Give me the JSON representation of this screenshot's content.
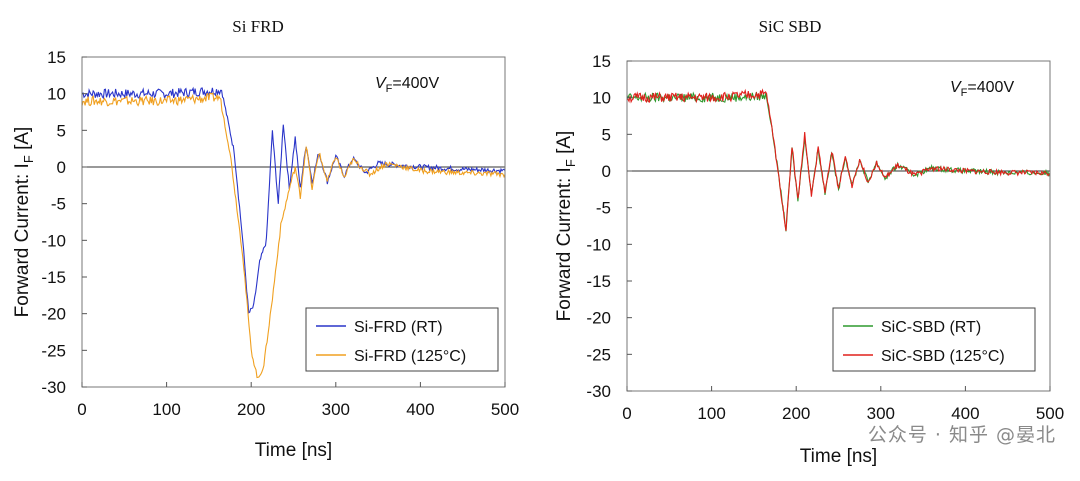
{
  "watermark": "公众号 · 知乎 @晏北",
  "chart_data": [
    {
      "type": "line",
      "title": "Si FRD",
      "xlabel": "Time [ns]",
      "ylabel": "Forward Current: I",
      "ylabel_sub": "F",
      "ylabel_unit": " [A]",
      "annotation": {
        "main": "V",
        "sub": "F",
        "rest": "=400V"
      },
      "xlim": [
        0,
        500
      ],
      "ylim": [
        -30,
        15
      ],
      "xticks": [
        0,
        100,
        200,
        300,
        400,
        500
      ],
      "yticks": [
        15,
        10,
        5,
        0,
        -5,
        -10,
        -15,
        -20,
        -25,
        -30
      ],
      "series": [
        {
          "name": "Si-FRD (RT)",
          "color": "#2a35c9",
          "x": [
            0,
            100,
            165,
            180,
            190,
            197,
            203,
            210,
            218,
            225,
            232,
            238,
            245,
            252,
            258,
            265,
            272,
            280,
            290,
            300,
            310,
            320,
            335,
            350,
            400,
            450,
            500
          ],
          "y": [
            10,
            10,
            10.5,
            2,
            -10,
            -20,
            -19,
            -13,
            -10,
            5,
            -5,
            6,
            -3,
            4,
            -3,
            3,
            -2,
            2,
            -2,
            1.5,
            -1.2,
            1.2,
            -0.8,
            0.5,
            0,
            -0.3,
            -0.5
          ]
        },
        {
          "name": "Si-FRD (125°C)",
          "color": "#f0a020",
          "x": [
            0,
            100,
            163,
            175,
            190,
            200,
            208,
            215,
            225,
            235,
            245,
            252,
            258,
            265,
            272,
            280,
            290,
            300,
            310,
            320,
            340,
            360,
            400,
            450,
            500
          ],
          "y": [
            9,
            9,
            9.5,
            2,
            -12,
            -25,
            -29,
            -27,
            -18,
            -8,
            -3,
            0,
            -4,
            3,
            -3,
            2,
            -2,
            1.5,
            -1.5,
            1,
            -1,
            0.5,
            -0.5,
            -0.8,
            -1
          ]
        }
      ]
    },
    {
      "type": "line",
      "title": "SiC SBD",
      "xlabel": "Time [ns]",
      "ylabel": "Forward Current: I",
      "ylabel_sub": "F",
      "ylabel_unit": " [A]",
      "annotation": {
        "main": "V",
        "sub": "F",
        "rest": "=400V"
      },
      "xlim": [
        0,
        500
      ],
      "ylim": [
        -30,
        15
      ],
      "xticks": [
        0,
        100,
        200,
        300,
        400,
        500
      ],
      "yticks": [
        15,
        10,
        5,
        0,
        -5,
        -10,
        -15,
        -20,
        -25,
        -30
      ],
      "series": [
        {
          "name": "SiC-SBD (RT)",
          "color": "#2e9a2e",
          "x": [
            0,
            100,
            165,
            175,
            182,
            188,
            195,
            202,
            210,
            218,
            226,
            234,
            242,
            250,
            258,
            266,
            275,
            285,
            295,
            305,
            320,
            340,
            360,
            400,
            450,
            500
          ],
          "y": [
            10,
            10,
            10.2,
            3,
            -3,
            -8,
            3,
            -4,
            4.5,
            -3,
            3,
            -3,
            2.5,
            -2.5,
            2,
            -2,
            1.5,
            -1.5,
            1.2,
            -1,
            0.8,
            -0.5,
            0.4,
            0,
            -0.2,
            -0.3
          ]
        },
        {
          "name": "SiC-SBD (125°C)",
          "color": "#e0201c",
          "x": [
            0,
            100,
            165,
            175,
            182,
            188,
            195,
            202,
            210,
            218,
            226,
            234,
            242,
            250,
            258,
            266,
            275,
            285,
            295,
            305,
            320,
            340,
            360,
            400,
            450,
            500
          ],
          "y": [
            10,
            10,
            10.5,
            3,
            -3,
            -8,
            3.5,
            -4,
            5,
            -3.5,
            3.2,
            -3,
            2.8,
            -2.5,
            2,
            -2,
            1.6,
            -1.5,
            1.2,
            -1,
            0.8,
            -0.6,
            0.4,
            0,
            -0.2,
            -0.3
          ]
        }
      ]
    }
  ]
}
